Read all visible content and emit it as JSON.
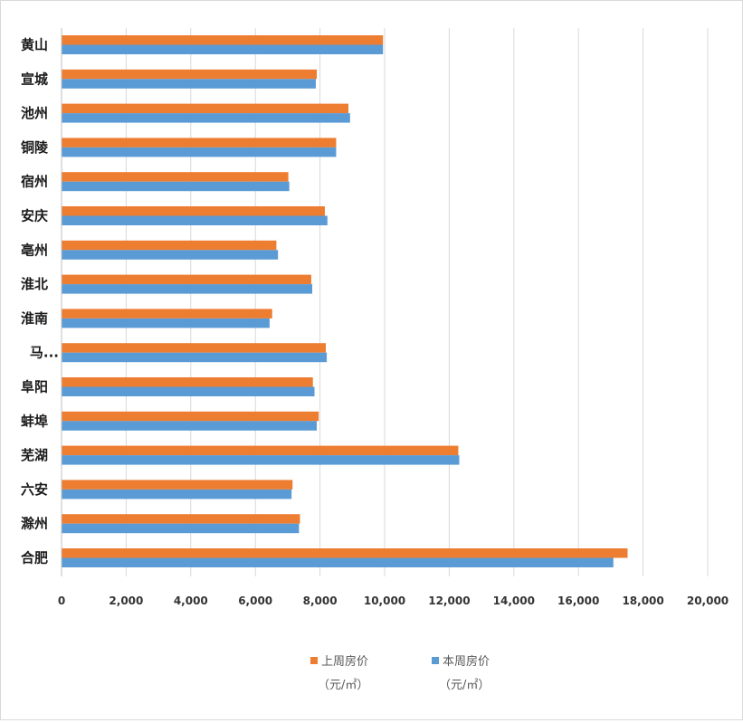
{
  "chart_data": {
    "type": "bar",
    "orientation": "horizontal",
    "title": "",
    "xlabel": "",
    "ylabel": "",
    "categories": [
      "黄山",
      "宣城",
      "池州",
      "铜陵",
      "宿州",
      "安庆",
      "亳州",
      "淮北",
      "淮南",
      "马...",
      "阜阳",
      "蚌埠",
      "芜湖",
      "六安",
      "滁州",
      "合肥"
    ],
    "series": [
      {
        "name": "上周房价",
        "unit": "（元/㎡）",
        "color": "#ed7d31",
        "values": [
          9950,
          7900,
          8880,
          8500,
          7020,
          8150,
          6650,
          7730,
          6520,
          8180,
          7780,
          7960,
          12280,
          7150,
          7380,
          17520
        ]
      },
      {
        "name": "本周房价",
        "unit": "（元/㎡）",
        "color": "#5b9bd5",
        "values": [
          9950,
          7870,
          8930,
          8500,
          7050,
          8230,
          6700,
          7760,
          6440,
          8210,
          7830,
          7900,
          12310,
          7120,
          7350,
          17080
        ]
      }
    ],
    "xlim": [
      0,
      20000
    ],
    "xticks": [
      "0",
      "2,000",
      "4,000",
      "6,000",
      "8,000",
      "10,000",
      "12,000",
      "14,000",
      "16,000",
      "18,000",
      "20,000"
    ],
    "grid": true,
    "legend_position": "bottom"
  },
  "colors": {
    "grid": "#d9d9d9",
    "axis": "#bfbfbf"
  }
}
